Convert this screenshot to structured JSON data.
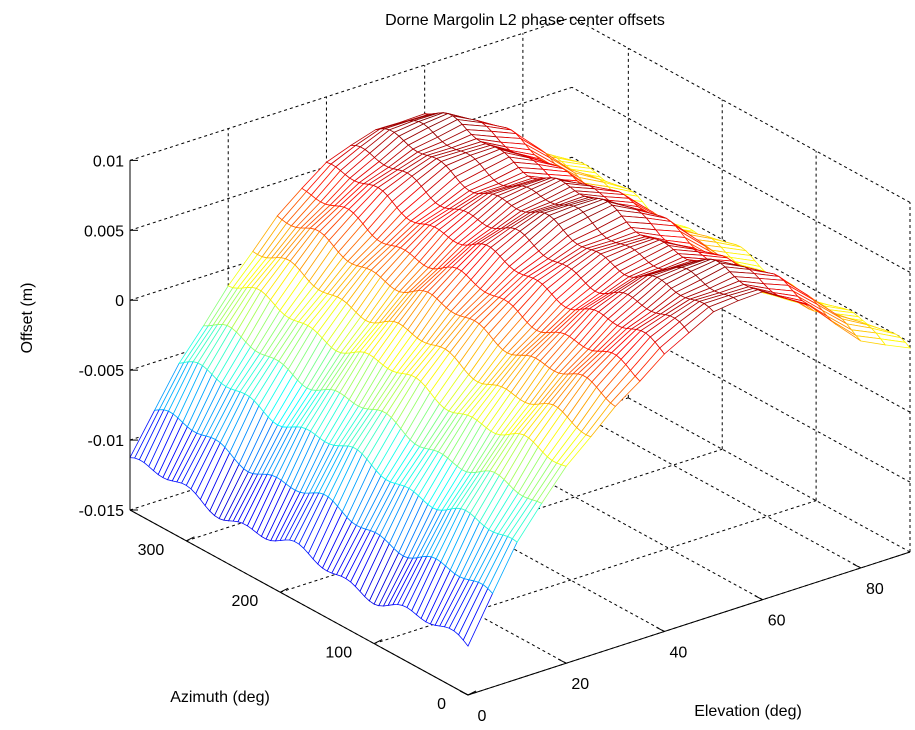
{
  "chart_data": {
    "type": "surface",
    "title": "Dorne Margolin L2 phase center offsets",
    "xlabel": "Elevation (deg)",
    "ylabel": "Azimuth (deg)",
    "zlabel": "Offset (m)",
    "xlim": [
      0,
      90
    ],
    "ylim": [
      0,
      360
    ],
    "zlim": [
      -0.015,
      0.01
    ],
    "x_ticks": [
      "0",
      "20",
      "40",
      "60",
      "80"
    ],
    "y_ticks": [
      "0",
      "100",
      "200",
      "300"
    ],
    "z_ticks": [
      "0.01",
      "0.005",
      "0",
      "-0.005",
      "-0.01",
      "-0.015"
    ],
    "grid": true,
    "colormap": "jet",
    "elevation_profile": {
      "x": [
        0,
        10,
        20,
        30,
        40,
        50,
        60,
        70,
        80,
        90
      ],
      "z": [
        -0.0115,
        -0.0055,
        -0.001,
        0.0025,
        0.005,
        0.0065,
        0.0068,
        0.005,
        0.0015,
        -0.0005
      ]
    }
  }
}
